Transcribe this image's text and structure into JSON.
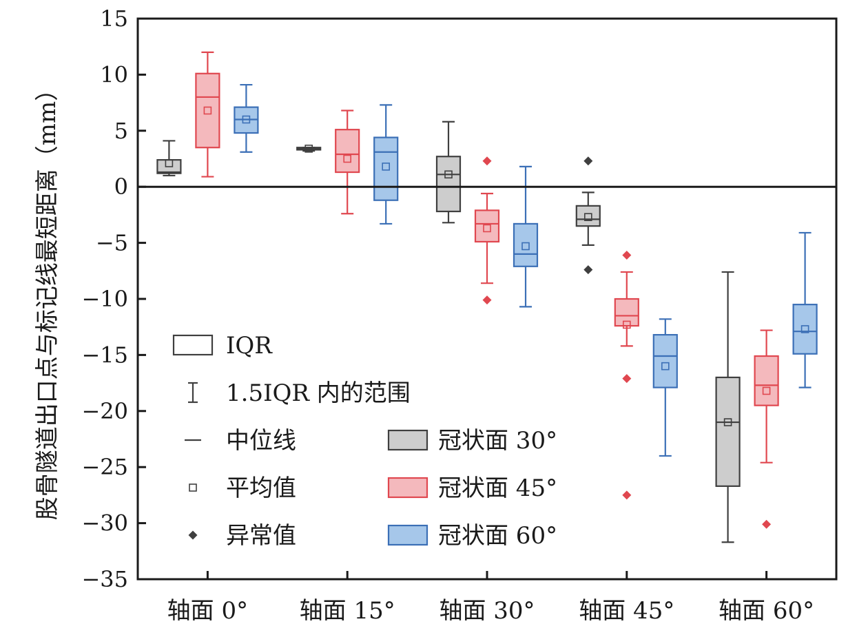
{
  "chart_data": {
    "type": "boxplot",
    "ylabel": "股骨隧道出口点与标记线最短距离（mm）",
    "ylim": [
      -35,
      15
    ],
    "yticks": [
      15,
      10,
      5,
      0,
      -5,
      -10,
      -15,
      -20,
      -25,
      -30,
      -35
    ],
    "ytick_labels": [
      "15",
      "10",
      "5",
      "0",
      "−5",
      "−10",
      "−15",
      "−20",
      "−25",
      "−30",
      "−35"
    ],
    "categories": [
      "轴面 0°",
      "轴面 15°",
      "轴面 30°",
      "轴面 45°",
      "轴面 60°"
    ],
    "zero_line": true,
    "legend_position": "bottom-left",
    "series": [
      {
        "name": "冠状面 30°",
        "stroke": "#3f3f3f",
        "fill": "#cdcdcd",
        "boxes": [
          {
            "whisker_low": 1.0,
            "q1": 1.2,
            "median": 1.3,
            "q3": 2.4,
            "whisker_high": 4.1,
            "mean": 2.1,
            "outliers": []
          },
          {
            "whisker_low": 3.2,
            "q1": 3.3,
            "median": 3.4,
            "q3": 3.5,
            "whisker_high": 3.5,
            "mean": 3.4,
            "outliers": []
          },
          {
            "whisker_low": -3.2,
            "q1": -2.2,
            "median": 1.1,
            "q3": 2.7,
            "whisker_high": 5.8,
            "mean": 1.1,
            "outliers": []
          },
          {
            "whisker_low": -5.2,
            "q1": -3.5,
            "median": -2.9,
            "q3": -1.7,
            "whisker_high": -0.5,
            "mean": -2.7,
            "outliers": [
              2.3,
              -7.4
            ]
          },
          {
            "whisker_low": -31.7,
            "q1": -26.7,
            "median": -21.0,
            "q3": -17.0,
            "whisker_high": -7.6,
            "mean": -21.0,
            "outliers": []
          }
        ]
      },
      {
        "name": "冠状面 45°",
        "stroke": "#e0474f",
        "fill": "#f4b9bd",
        "boxes": [
          {
            "whisker_low": 0.9,
            "q1": 3.5,
            "median": 8.0,
            "q3": 10.1,
            "whisker_high": 12.0,
            "mean": 6.8,
            "outliers": []
          },
          {
            "whisker_low": -2.4,
            "q1": 1.3,
            "median": 2.9,
            "q3": 5.1,
            "whisker_high": 6.8,
            "mean": 2.5,
            "outliers": []
          },
          {
            "whisker_low": -8.6,
            "q1": -4.9,
            "median": -3.3,
            "q3": -2.1,
            "whisker_high": -0.6,
            "mean": -3.7,
            "outliers": [
              2.3,
              -10.1
            ]
          },
          {
            "whisker_low": -14.2,
            "q1": -12.4,
            "median": -11.5,
            "q3": -10.0,
            "whisker_high": -7.6,
            "mean": -12.3,
            "outliers": [
              -6.1,
              -17.1,
              -27.5
            ]
          },
          {
            "whisker_low": -24.6,
            "q1": -19.5,
            "median": -17.7,
            "q3": -15.1,
            "whisker_high": -12.8,
            "mean": -18.2,
            "outliers": [
              -30.1
            ]
          }
        ]
      },
      {
        "name": "冠状面 60°",
        "stroke": "#3b6fb6",
        "fill": "#a6c7ea",
        "boxes": [
          {
            "whisker_low": 3.1,
            "q1": 4.8,
            "median": 6.0,
            "q3": 7.1,
            "whisker_high": 9.1,
            "mean": 6.0,
            "outliers": []
          },
          {
            "whisker_low": -3.3,
            "q1": -1.2,
            "median": 3.1,
            "q3": 4.4,
            "whisker_high": 7.3,
            "mean": 1.8,
            "outliers": []
          },
          {
            "whisker_low": -10.7,
            "q1": -7.1,
            "median": -6.0,
            "q3": -3.3,
            "whisker_high": 1.8,
            "mean": -5.3,
            "outliers": []
          },
          {
            "whisker_low": -24.0,
            "q1": -17.9,
            "median": -15.1,
            "q3": -13.2,
            "whisker_high": -11.8,
            "mean": -16.0,
            "outliers": []
          },
          {
            "whisker_low": -17.9,
            "q1": -14.9,
            "median": -12.9,
            "q3": -10.5,
            "whisker_high": -4.1,
            "mean": -12.7,
            "outliers": []
          }
        ]
      }
    ],
    "legend": {
      "symbols": [
        {
          "key": "iqr",
          "label": "IQR"
        },
        {
          "key": "whisker",
          "label": "1.5IQR 内的范围"
        },
        {
          "key": "median",
          "label": "中位线"
        },
        {
          "key": "mean",
          "label": "平均值"
        },
        {
          "key": "outlier",
          "label": "异常值"
        }
      ]
    }
  }
}
